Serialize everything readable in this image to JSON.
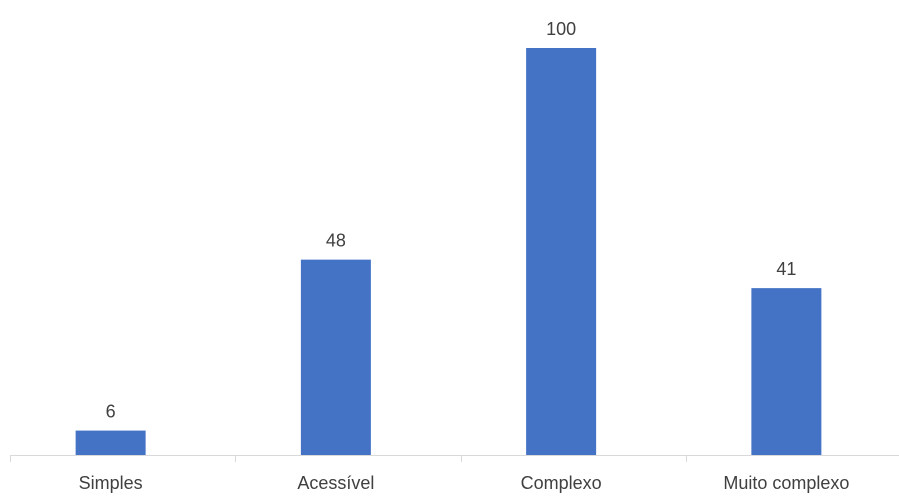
{
  "chart_data": {
    "type": "bar",
    "categories": [
      "Simples",
      "Acessível",
      "Complexo",
      "Muito complexo"
    ],
    "values": [
      6,
      48,
      100,
      41
    ],
    "data_labels": [
      "6",
      "48",
      "100",
      "41"
    ],
    "title": "",
    "xlabel": "",
    "ylabel": "",
    "ylim": [
      0,
      100
    ],
    "grid": false,
    "legend": "none",
    "bar_color": "#4472C4",
    "axis_color": "#D9D9D9",
    "text_color": "#404040"
  }
}
